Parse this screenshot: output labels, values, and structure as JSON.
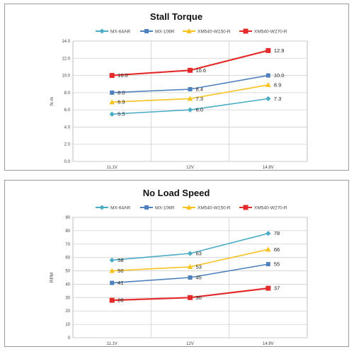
{
  "chart_data": [
    {
      "type": "line",
      "title": "Stall Torque",
      "xlabel": "",
      "ylabel": "N.m",
      "categories": [
        "11.1V",
        "12V",
        "14.8V"
      ],
      "ylim": [
        0,
        14
      ],
      "yticks": [
        "0.0",
        "2.0",
        "4.0",
        "6.0",
        "8.0",
        "10.0",
        "12.0",
        "14.0"
      ],
      "grid": true,
      "legend": "top",
      "series": [
        {
          "name": "MX-64AR",
          "values": [
            5.5,
            6.0,
            7.3
          ],
          "labels": [
            "5.5",
            "6.0",
            "7.3"
          ],
          "color": "#4bacc6",
          "marker": "diamond"
        },
        {
          "name": "MX-106R",
          "values": [
            8.0,
            8.4,
            10.0
          ],
          "labels": [
            "8.0",
            "8.4",
            "10.0"
          ],
          "color": "#4f81bd",
          "marker": "square"
        },
        {
          "name": "XM540-W150-R",
          "values": [
            6.9,
            7.3,
            8.9
          ],
          "labels": [
            "6.9",
            "7.3",
            "8.9"
          ],
          "color": "#f7c21e",
          "marker": "triangle"
        },
        {
          "name": "XM540-W270-R",
          "values": [
            10.0,
            10.6,
            12.9
          ],
          "labels": [
            "10.0",
            "10.6",
            "12.9"
          ],
          "color": "#e42b2b",
          "marker": "square"
        }
      ]
    },
    {
      "type": "line",
      "title": "No Load Speed",
      "xlabel": "",
      "ylabel": "RPM",
      "categories": [
        "11.1V",
        "12V",
        "14.8V"
      ],
      "ylim": [
        0,
        90
      ],
      "yticks": [
        "0",
        "10",
        "20",
        "30",
        "40",
        "50",
        "60",
        "70",
        "80",
        "90"
      ],
      "grid": true,
      "legend": "top",
      "series": [
        {
          "name": "MX-64AR",
          "values": [
            58,
            63,
            78
          ],
          "labels": [
            "58",
            "63",
            "78"
          ],
          "color": "#4bacc6",
          "marker": "diamond"
        },
        {
          "name": "MX-106R",
          "values": [
            41,
            45,
            55
          ],
          "labels": [
            "41",
            "45",
            "55"
          ],
          "color": "#4f81bd",
          "marker": "square"
        },
        {
          "name": "XM540-W150-R",
          "values": [
            50,
            53,
            66
          ],
          "labels": [
            "50",
            "53",
            "66"
          ],
          "color": "#f7c21e",
          "marker": "triangle"
        },
        {
          "name": "XM540-W270-R",
          "values": [
            28,
            30,
            37
          ],
          "labels": [
            "28",
            "30",
            "37"
          ],
          "color": "#e42b2b",
          "marker": "square"
        }
      ]
    }
  ]
}
